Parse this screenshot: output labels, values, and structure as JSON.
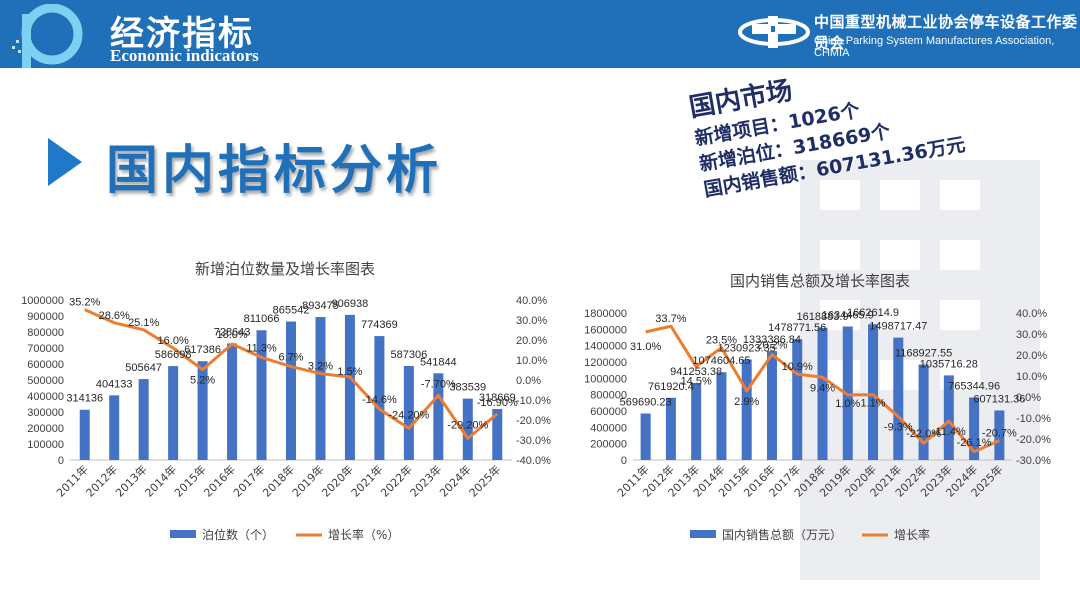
{
  "header": {
    "title_cn": "经济指标",
    "title_en": "Economic indicators",
    "org_cn": "中国重型机械工业协会停车设备工作委员会",
    "org_en": "China Parking System Manufactures Association, CHMIA"
  },
  "section": {
    "title": "国内指标分析"
  },
  "market": {
    "title": "国内市场",
    "projects": "新增项目：1026个",
    "berths": "新增泊位：318669个",
    "sales": "国内销售额：607131.36万元"
  },
  "colors": {
    "bar": "#4472c4",
    "line": "#ed7d31",
    "header": "#1f6fb9"
  },
  "chart_data": [
    {
      "type": "bar",
      "title": "新增泊位数量及增长率图表",
      "categories": [
        "2011年",
        "2012年",
        "2013年",
        "2014年",
        "2015年",
        "2016年",
        "2017年",
        "2018年",
        "2019年",
        "2020年",
        "2021年",
        "2022年",
        "2023年",
        "2024年",
        "2025年"
      ],
      "series": [
        {
          "name": "泊位数（个）",
          "type": "bar",
          "axis": "left",
          "values": [
            314136,
            404133,
            505647,
            586698,
            617386,
            728643,
            811066,
            865542,
            893475,
            906938,
            774369,
            587306,
            541844,
            383539,
            318669
          ],
          "labels": [
            "314136",
            "404133",
            "505647",
            "586698",
            "617386",
            "728643",
            "811066",
            "865542",
            "893475",
            "906938",
            "774369",
            "587306",
            "541844",
            "383539",
            "318669"
          ]
        },
        {
          "name": "增长率（%）",
          "type": "line",
          "axis": "right",
          "values": [
            35.2,
            28.6,
            25.1,
            16.0,
            5.2,
            18.0,
            11.3,
            6.7,
            3.2,
            1.5,
            -14.6,
            -24.2,
            -7.7,
            -29.2,
            -16.9
          ],
          "labels": [
            "35.2%",
            "28.6%",
            "25.1%",
            "16.0%",
            "5.2%",
            "18.0%",
            "11.3%",
            "6.7%",
            "3.2%",
            "1.5%",
            "-14.6%",
            "-24.20%",
            "-7.70%",
            "-29.20%",
            "-16.90%"
          ]
        }
      ],
      "ylim_left": [
        0,
        1000000
      ],
      "yticks_left": [
        "0",
        "100000",
        "200000",
        "300000",
        "400000",
        "500000",
        "600000",
        "700000",
        "800000",
        "900000",
        "1000000"
      ],
      "ylim_right": [
        -40,
        40
      ],
      "yticks_right": [
        "-40.0%",
        "-30.0%",
        "-20.0%",
        "-10.0%",
        "0.0%",
        "10.0%",
        "20.0%",
        "30.0%",
        "40.0%"
      ],
      "legend": [
        "泊位数（个）",
        "增长率（%）"
      ],
      "legend_position": "bottom"
    },
    {
      "type": "bar",
      "title": "国内销售总额及增长率图表",
      "categories": [
        "2011年",
        "2012年",
        "2013年",
        "2014年",
        "2015年",
        "2016年",
        "2017年",
        "2018年",
        "2019年",
        "2020年",
        "2021年",
        "2022年",
        "2023年",
        "2024年",
        "2025年"
      ],
      "series": [
        {
          "name": "国内销售总额（万元）",
          "type": "bar",
          "axis": "left",
          "values": [
            569690.23,
            761920.4,
            941253.38,
            1074604.65,
            1230923.35,
            1333386.84,
            1478771.56,
            1618883.9,
            1634465.9,
            1662614.9,
            1498717.47,
            1168927.55,
            1035716.28,
            765344.96,
            607131.36
          ],
          "labels": [
            "569690.23",
            "761920.4",
            "941253.38",
            "1074604.65",
            "1230923.35",
            "1333386.84",
            "1478771.56",
            "1618883.9",
            "1634465.9",
            "1662614.9",
            "1498717.47",
            "1168927.55",
            "1035716.28",
            "765344.96",
            "607131.36"
          ]
        },
        {
          "name": "增长率",
          "type": "line",
          "axis": "right",
          "values": [
            31.0,
            33.7,
            14.5,
            23.5,
            2.9,
            20.2,
            10.9,
            9.4,
            1.0,
            1.1,
            -9.3,
            -22.0,
            -11.4,
            -26.1,
            -20.7
          ],
          "labels": [
            "31.0%",
            "33.7%",
            "14.5%",
            "23.5%",
            "2.9%",
            "20.2%",
            "10.9%",
            "9.4%",
            "1.0%",
            "1.1%",
            "-9.3%",
            "-22.0%",
            "-11.4%",
            "-26.1%",
            "-20.7%"
          ]
        }
      ],
      "ylim_left": [
        0,
        1800000
      ],
      "yticks_left": [
        "0",
        "200000",
        "400000",
        "600000",
        "800000",
        "1000000",
        "1200000",
        "1400000",
        "1600000",
        "1800000"
      ],
      "ylim_right": [
        -30,
        40
      ],
      "yticks_right": [
        "-30.0%",
        "-20.0%",
        "-10.0%",
        "0.0%",
        "10.0%",
        "20.0%",
        "30.0%",
        "40.0%"
      ],
      "legend": [
        "国内销售总额（万元）",
        "增长率"
      ],
      "legend_position": "bottom"
    }
  ]
}
